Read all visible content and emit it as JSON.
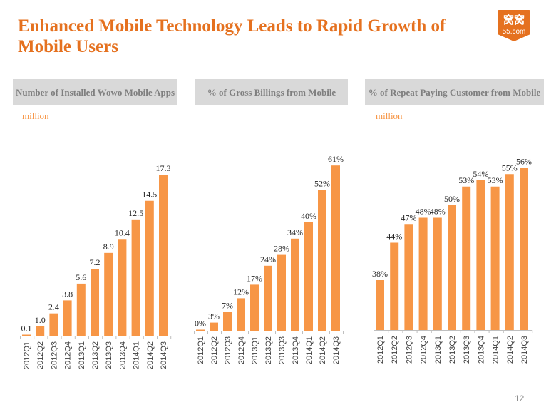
{
  "slide": {
    "title": "Enhanced Mobile Technology Leads to Rapid Growth of Mobile Users",
    "page_number": "12",
    "logo": {
      "top_text": "窝窝",
      "bottom_text": "55.com",
      "color": "#e5711f"
    }
  },
  "panels": [
    {
      "header": "Number of Installed Wowo Mobile Apps",
      "unit": "million"
    },
    {
      "header": "% of Gross Billings from Mobile",
      "unit": ""
    },
    {
      "header": "% of Repeat Paying Customer from Mobile",
      "unit": "million"
    }
  ],
  "colors": {
    "bar": "#f79646",
    "title": "#e5711f",
    "header_bg": "#d9d9d9",
    "header_text": "#7f7f7f"
  },
  "chart_data": [
    {
      "type": "bar",
      "title": "Number of Installed Wowo Mobile Apps",
      "ylabel": "million",
      "categories": [
        "2012Q1",
        "2012Q2",
        "2012Q3",
        "2012Q4",
        "2013Q1",
        "2013Q2",
        "2013Q3",
        "2013Q4",
        "2014Q1",
        "2014Q2",
        "2014Q3"
      ],
      "values": [
        0.1,
        1.0,
        2.4,
        3.8,
        5.6,
        7.2,
        8.9,
        10.4,
        12.5,
        14.5,
        17.3
      ],
      "labels": [
        "0.1",
        "1.0",
        "2.4",
        "3.8",
        "5.6",
        "7.2",
        "8.9",
        "10.4",
        "12.5",
        "14.5",
        "17.3"
      ],
      "ylim": [
        0,
        19
      ],
      "grid": false
    },
    {
      "type": "bar",
      "title": "% of Gross Billings from Mobile",
      "ylabel": "",
      "categories": [
        "2012Q1",
        "2012Q2",
        "2012Q3",
        "2012Q4",
        "2013Q1",
        "2013Q2",
        "2013Q3",
        "2013Q4",
        "2014Q1",
        "2014Q2",
        "2014Q3"
      ],
      "values": [
        0,
        3,
        7,
        12,
        17,
        24,
        28,
        34,
        40,
        52,
        61
      ],
      "labels": [
        "0%",
        "3%",
        "7%",
        "12%",
        "17%",
        "24%",
        "28%",
        "34%",
        "40%",
        "52%",
        "61%"
      ],
      "ylim": [
        0,
        65
      ],
      "grid": false
    },
    {
      "type": "bar",
      "title": "% of Repeat Paying Customer from Mobile",
      "ylabel": "million",
      "categories": [
        "2012Q1",
        "2012Q2",
        "2012Q3",
        "2012Q4",
        "2013Q1",
        "2013Q2",
        "2013Q3",
        "2013Q4",
        "2014Q1",
        "2014Q2",
        "2014Q3"
      ],
      "values": [
        38,
        44,
        47,
        48,
        48,
        50,
        53,
        54,
        53,
        55,
        56
      ],
      "labels": [
        "38%",
        "44%",
        "47%",
        "48%",
        "48%",
        "50%",
        "53%",
        "54%",
        "53%",
        "55%",
        "56%"
      ],
      "ylim": [
        30,
        58
      ],
      "grid": false
    }
  ]
}
